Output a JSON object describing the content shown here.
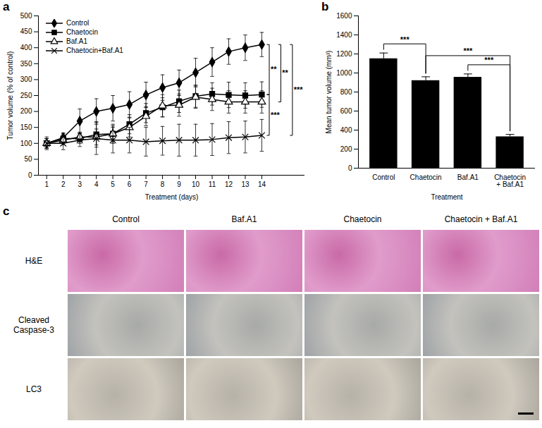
{
  "chart_data": [
    {
      "type": "line",
      "title": "a",
      "x": [
        1,
        2,
        3,
        4,
        5,
        6,
        7,
        8,
        9,
        10,
        11,
        12,
        13,
        14
      ],
      "xlim": [
        0.5,
        16.6
      ],
      "xticks": [
        1,
        2,
        3,
        4,
        5,
        6,
        7,
        8,
        9,
        10,
        11,
        12,
        13,
        14
      ],
      "ylim": [
        0,
        500
      ],
      "yticks": [
        0,
        50,
        100,
        150,
        200,
        250,
        300,
        350,
        400,
        450,
        500
      ],
      "x_label": "Treatment (days)",
      "y_label": "Tumor volume (% of control)",
      "legend": "upper left",
      "grid": false,
      "series": [
        {
          "name": "Control",
          "color": "#000000",
          "marker": "diamond",
          "values": [
            100,
            118,
            170,
            200,
            210,
            222,
            252,
            275,
            290,
            322,
            355,
            388,
            400,
            410
          ],
          "errors": [
            15,
            15,
            38,
            40,
            40,
            40,
            40,
            40,
            40,
            45,
            45,
            40,
            40,
            38
          ]
        },
        {
          "name": "Chaetocin",
          "color": "#000000",
          "marker": "square",
          "values": [
            100,
            115,
            115,
            128,
            130,
            160,
            195,
            213,
            232,
            248,
            255,
            252,
            250,
            253
          ],
          "errors": [
            15,
            15,
            15,
            40,
            30,
            30,
            30,
            30,
            35,
            35,
            35,
            40,
            40,
            40
          ]
        },
        {
          "name": "Baf.A1",
          "color": "#000000",
          "marker": "triangle-open",
          "values": [
            100,
            110,
            120,
            120,
            130,
            150,
            185,
            218,
            220,
            245,
            238,
            230,
            230,
            230
          ],
          "errors": [
            15,
            15,
            15,
            25,
            25,
            30,
            30,
            35,
            35,
            35,
            35,
            35,
            35,
            35
          ]
        },
        {
          "name": "Chaetocin+Baf.A1",
          "color": "#000000",
          "marker": "x",
          "values": [
            100,
            100,
            110,
            115,
            110,
            110,
            105,
            108,
            110,
            110,
            112,
            118,
            120,
            125
          ],
          "errors": [
            20,
            20,
            20,
            50,
            40,
            40,
            45,
            45,
            50,
            50,
            50,
            50,
            50,
            50
          ]
        }
      ],
      "comparisons": [
        {
          "groups": [
            "Control",
            "Chaetocin"
          ],
          "label": "**"
        },
        {
          "groups": [
            "Control",
            "Baf.A1"
          ],
          "label": "**"
        },
        {
          "groups": [
            "Control",
            "Chaetocin+Baf.A1"
          ],
          "label": "***"
        },
        {
          "groups": [
            "Chaetocin",
            "Chaetocin+Baf.A1"
          ],
          "label": "***"
        }
      ]
    },
    {
      "type": "bar",
      "title": "b",
      "categories": [
        "Control",
        "Chaetocin",
        "Baf.A1",
        "Chaetocin + Baf.A1"
      ],
      "values": [
        1150,
        920,
        955,
        330
      ],
      "errors": [
        60,
        40,
        35,
        25
      ],
      "color": "#000000",
      "ylim": [
        0,
        1600
      ],
      "yticks": [
        0,
        200,
        400,
        600,
        800,
        1000,
        1200,
        1400,
        1600
      ],
      "x_label": "Treatment",
      "y_label": "Mean tumor volume (mm³)",
      "grid": false,
      "comparisons": [
        {
          "groups": [
            "Control",
            "Chaetocin"
          ],
          "label": "***"
        },
        {
          "groups": [
            "Chaetocin",
            "Chaetocin + Baf.A1"
          ],
          "label": "***"
        },
        {
          "groups": [
            "Baf.A1",
            "Chaetocin + Baf.A1"
          ],
          "label": "***"
        }
      ]
    }
  ],
  "images": {
    "title": "c",
    "columns": [
      "Control",
      "Baf.A1",
      "Chaetocin",
      "Chaetocin + Baf.A1"
    ],
    "rows": [
      "H&E",
      "Cleaved Caspase-3",
      "LC3"
    ]
  }
}
